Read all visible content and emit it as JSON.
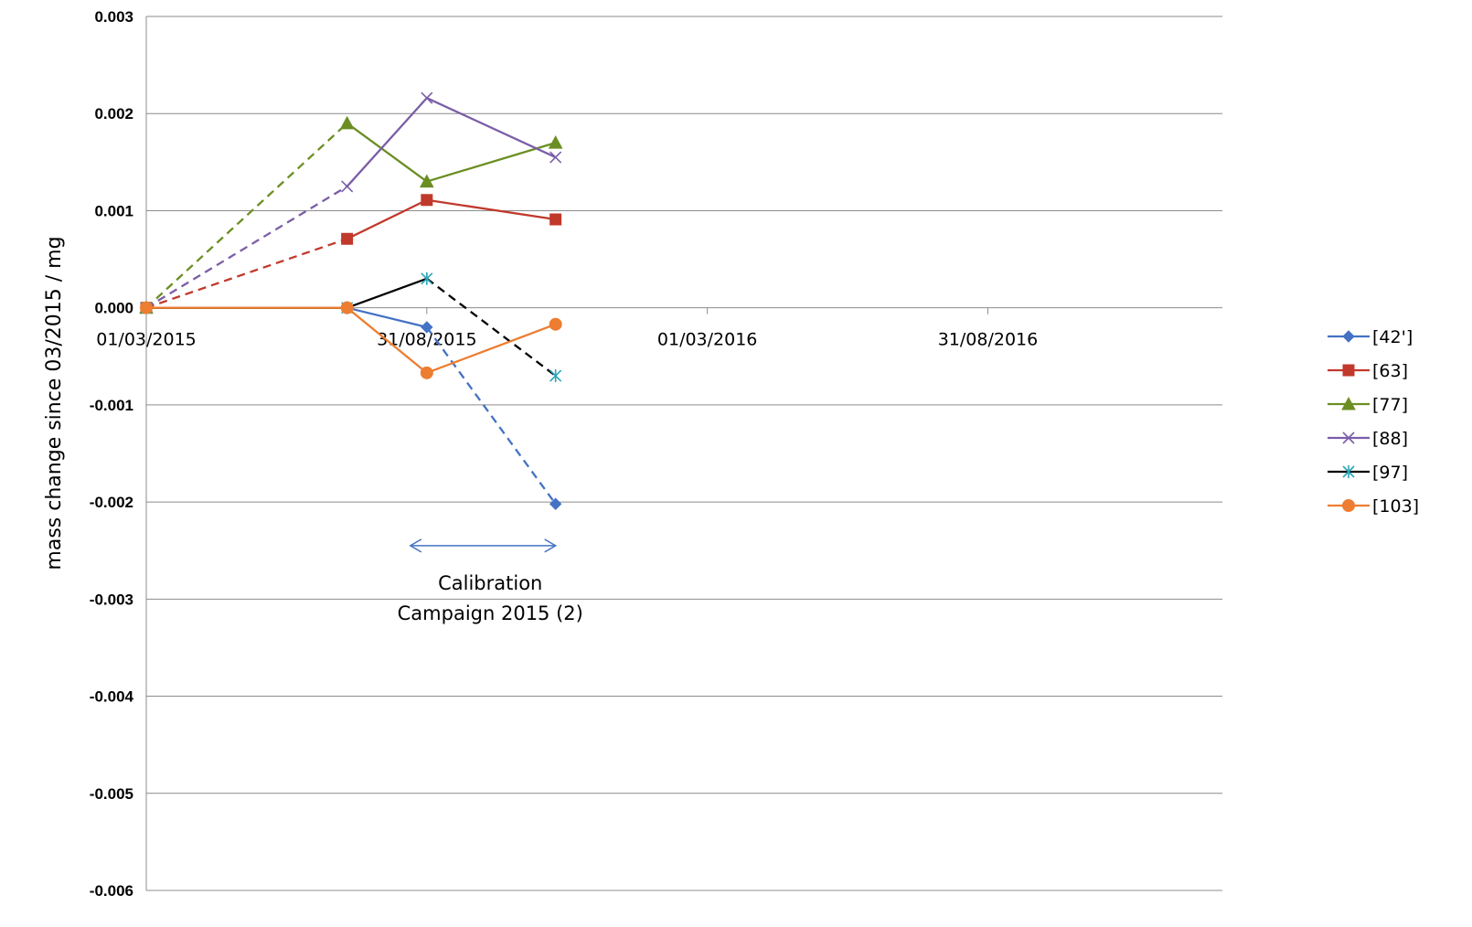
{
  "chart_data": {
    "type": "line",
    "ylabel": "mass change since 03/2015  / mg",
    "xlabel": "",
    "title": "",
    "ylim": [
      -0.006,
      0.003
    ],
    "yticks": [
      "0.003",
      "0.002",
      "0.001",
      "0.000",
      "-0.001",
      "-0.002",
      "-0.003",
      "-0.004",
      "-0.005",
      "-0.006"
    ],
    "xlim": [
      "2015-03-01",
      "2017-01-31"
    ],
    "xticks": [
      "01/03/2015",
      "31/08/2015",
      "01/03/2016",
      "31/08/2016"
    ],
    "grid": "horizontal",
    "legend_position": "right",
    "series": [
      {
        "name": "[42']",
        "color": "#4472C4",
        "marker": "diamond",
        "x": [
          "2015-03-01",
          "2015-07-10",
          "2015-08-31",
          "2015-11-23"
        ],
        "y": [
          0.0,
          0.0,
          -0.0002,
          -0.00202
        ],
        "dashed_segments": [
          2
        ]
      },
      {
        "name": "[63]",
        "color": "#C0392B",
        "marker": "square",
        "x": [
          "2015-03-01",
          "2015-07-10",
          "2015-08-31",
          "2015-11-23"
        ],
        "y": [
          0.0,
          0.00071,
          0.00111,
          0.00091
        ],
        "dashed_segments": [
          0
        ]
      },
      {
        "name": "[77]",
        "color": "#6B8E23",
        "marker": "triangle",
        "x": [
          "2015-03-01",
          "2015-07-10",
          "2015-08-31",
          "2015-11-23"
        ],
        "y": [
          0.0,
          0.0019,
          0.0013,
          0.0017
        ],
        "dashed_segments": [
          0
        ]
      },
      {
        "name": "[88]",
        "color": "#7B5EA7",
        "marker": "x",
        "x": [
          "2015-03-01",
          "2015-07-10",
          "2015-08-31",
          "2015-11-23"
        ],
        "y": [
          0.0,
          0.00125,
          0.00216,
          0.00155
        ],
        "dashed_segments": [
          0
        ]
      },
      {
        "name": "[97]",
        "color": "#000000",
        "marker": "star",
        "marker_color": "#2AA6B8",
        "x": [
          "2015-03-01",
          "2015-07-10",
          "2015-08-31",
          "2015-11-23"
        ],
        "y": [
          0.0,
          0.0,
          0.0003,
          -0.0007
        ],
        "dashed_segments": [
          2
        ]
      },
      {
        "name": "[103]",
        "color": "#ED7D31",
        "marker": "circle",
        "x": [
          "2015-03-01",
          "2015-07-10",
          "2015-08-31",
          "2015-11-23"
        ],
        "y": [
          0.0,
          0.0,
          -0.00067,
          -0.00017
        ],
        "dashed_segments": []
      }
    ],
    "annotations": [
      {
        "text_lines": [
          "Calibration",
          "Campaign 2015 (2)"
        ],
        "arrow_from": "2015-08-31",
        "arrow_to": "2015-11-23",
        "arrow_y": -0.00245,
        "arrow_color": "#4472C4"
      }
    ]
  }
}
